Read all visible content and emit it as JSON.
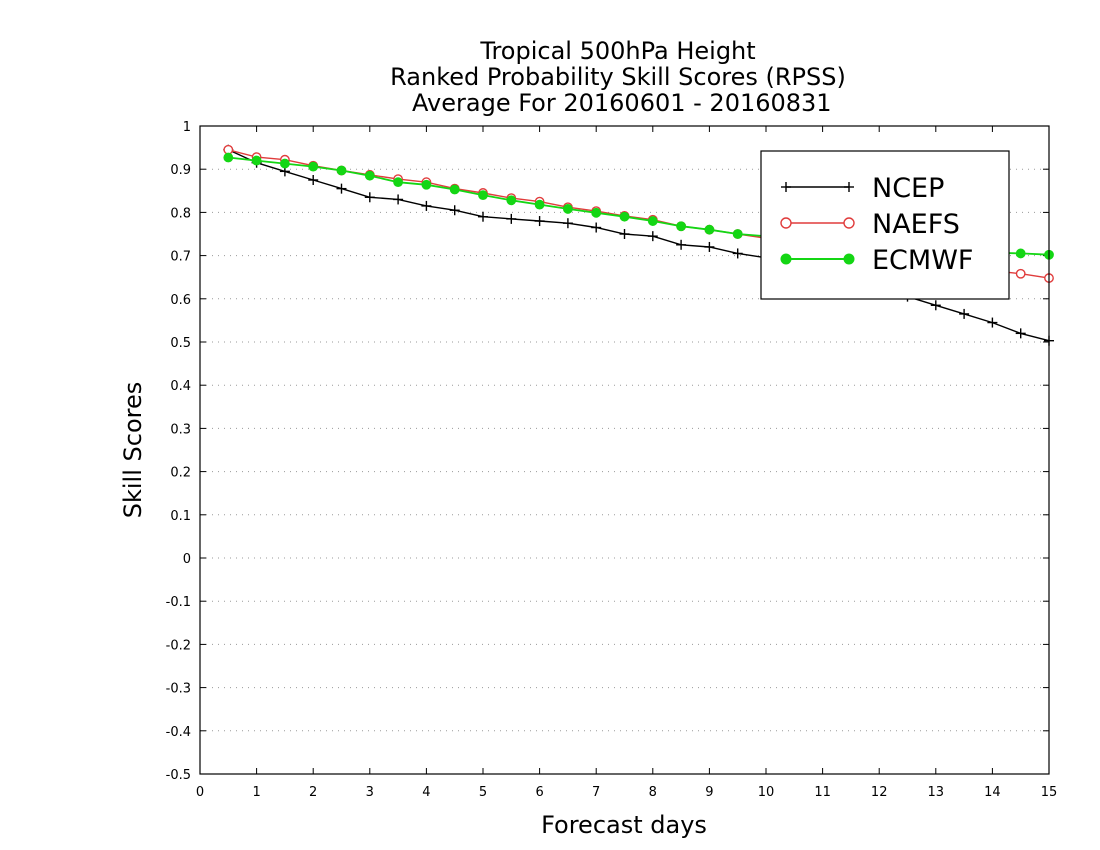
{
  "chart_data": {
    "type": "line",
    "title": [
      "Tropical 500hPa Height",
      "Ranked Probability Skill Scores (RPSS)",
      " Average For 20160601 - 20160831"
    ],
    "xlabel": "Forecast days",
    "ylabel": "Skill Scores",
    "xlim": [
      0,
      15
    ],
    "ylim": [
      -0.5,
      1
    ],
    "x_ticks": [
      "0",
      "1",
      "2",
      "3",
      "4",
      "5",
      "6",
      "7",
      "8",
      "9",
      "10",
      "11",
      "12",
      "13",
      "14",
      "15"
    ],
    "y_ticks": [
      "1",
      "0.9",
      "0.8",
      "0.7",
      "0.6",
      "0.5",
      "0.4",
      "0.3",
      "0.2",
      "0.1",
      "0",
      "-0.1",
      "-0.2",
      "-0.3",
      "-0.4",
      "-0.5"
    ],
    "grid": true,
    "legend_position": "top-right",
    "x": [
      0.5,
      1,
      1.5,
      2,
      2.5,
      3,
      3.5,
      4,
      4.5,
      5,
      5.5,
      6,
      6.5,
      7,
      7.5,
      8,
      8.5,
      9,
      9.5,
      10,
      10.5,
      11,
      11.5,
      12,
      12.5,
      13,
      13.5,
      14,
      14.5,
      15
    ],
    "series": [
      {
        "name": "NCEP",
        "color": "#000000",
        "marker": "plus",
        "values": [
          0.945,
          0.915,
          0.895,
          0.875,
          0.855,
          0.835,
          0.83,
          0.815,
          0.805,
          0.79,
          0.785,
          0.78,
          0.775,
          0.765,
          0.75,
          0.745,
          0.725,
          0.72,
          0.705,
          0.695,
          0.685,
          0.675,
          0.66,
          0.64,
          0.605,
          0.585,
          0.565,
          0.545,
          0.52,
          0.503
        ]
      },
      {
        "name": "NAEFS",
        "color": "#e03c3c",
        "marker": "open-circle",
        "values": [
          0.945,
          0.928,
          0.922,
          0.908,
          0.897,
          0.887,
          0.877,
          0.87,
          0.855,
          0.845,
          0.833,
          0.825,
          0.812,
          0.803,
          0.792,
          0.783,
          0.768,
          0.76,
          0.75,
          0.74,
          0.73,
          0.72,
          0.71,
          0.7,
          0.69,
          0.68,
          0.67,
          0.665,
          0.658,
          0.648
        ]
      },
      {
        "name": "ECMWF",
        "color": "#14d614",
        "marker": "filled-circle",
        "values": [
          0.927,
          0.92,
          0.913,
          0.906,
          0.897,
          0.885,
          0.87,
          0.864,
          0.853,
          0.84,
          0.828,
          0.818,
          0.808,
          0.799,
          0.79,
          0.78,
          0.768,
          0.76,
          0.75,
          0.745,
          0.738,
          0.732,
          0.727,
          0.722,
          0.718,
          0.714,
          0.71,
          0.707,
          0.705,
          0.702
        ]
      }
    ]
  }
}
